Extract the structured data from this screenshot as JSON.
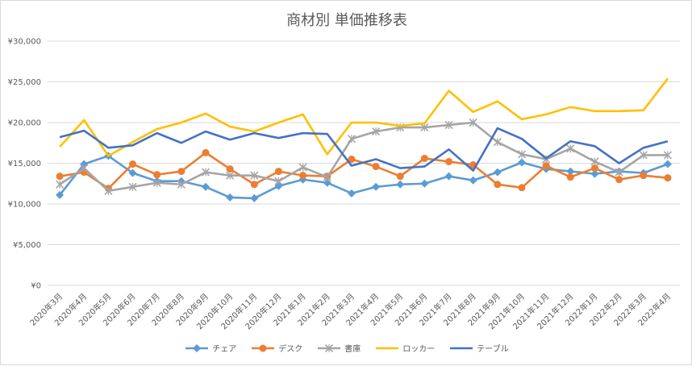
{
  "chart_data": {
    "type": "line",
    "title": "商材別 単価推移表",
    "categories": [
      "2020年3月",
      "2020年4月",
      "2020年5月",
      "2020年6月",
      "2020年7月",
      "2020年8月",
      "2020年9月",
      "2020年10月",
      "2020年11月",
      "2020年12月",
      "2021年1月",
      "2021年2月",
      "2021年3月",
      "2021年4月",
      "2021年5月",
      "2021年6月",
      "2021年7月",
      "2021年8月",
      "2021年9月",
      "2021年10月",
      "2021年11月",
      "2021年12月",
      "2022年1月",
      "2022年2月",
      "2022年3月",
      "2022年4月"
    ],
    "y_ticks": [
      "¥0",
      "¥5,000",
      "¥10,000",
      "¥15,000",
      "¥20,000",
      "¥25,000",
      "¥30,000"
    ],
    "ylim": [
      0,
      30000
    ],
    "grid": true,
    "legend_position": "bottom",
    "series": [
      {
        "name": "チェア",
        "color": "#5b9bd5",
        "marker": "diamond",
        "values": [
          11100,
          14900,
          15900,
          13800,
          12800,
          12800,
          12100,
          10800,
          10700,
          12200,
          13000,
          12600,
          11300,
          12100,
          12400,
          12500,
          13400,
          12900,
          13900,
          15100,
          14300,
          14000,
          13700,
          14000,
          13800,
          14900
        ]
      },
      {
        "name": "デスク",
        "color": "#ed7d31",
        "marker": "circle",
        "values": [
          13400,
          13900,
          11900,
          14900,
          13600,
          14000,
          16300,
          14300,
          12400,
          14000,
          13500,
          13400,
          15500,
          14600,
          13400,
          15600,
          15200,
          14800,
          12400,
          12000,
          14700,
          13300,
          14400,
          13000,
          13500,
          13200
        ]
      },
      {
        "name": "書庫",
        "color": "#a5a5a5",
        "marker": "x",
        "values": [
          12400,
          14400,
          11600,
          12100,
          12600,
          12400,
          13900,
          13500,
          13500,
          12800,
          14500,
          13300,
          18000,
          18900,
          19400,
          19400,
          19700,
          20000,
          17600,
          16100,
          15500,
          16800,
          15200,
          13900,
          16000,
          16000
        ]
      },
      {
        "name": "ロッカー",
        "color": "#ffc000",
        "marker": "none",
        "values": [
          17000,
          20300,
          15900,
          17600,
          19200,
          20000,
          21100,
          19500,
          18900,
          20000,
          21000,
          16100,
          20000,
          20000,
          19600,
          19900,
          23900,
          21300,
          22600,
          20400,
          21000,
          21900,
          21400,
          21400,
          21500,
          25400
        ]
      },
      {
        "name": "テーブル",
        "color": "#4472c4",
        "marker": "none",
        "values": [
          18200,
          19000,
          16900,
          17200,
          18700,
          17500,
          18900,
          17900,
          18700,
          18100,
          18700,
          18600,
          14700,
          15500,
          14400,
          14600,
          16700,
          14100,
          19300,
          18000,
          15600,
          17700,
          17100,
          15000,
          16900,
          17700
        ]
      }
    ]
  }
}
